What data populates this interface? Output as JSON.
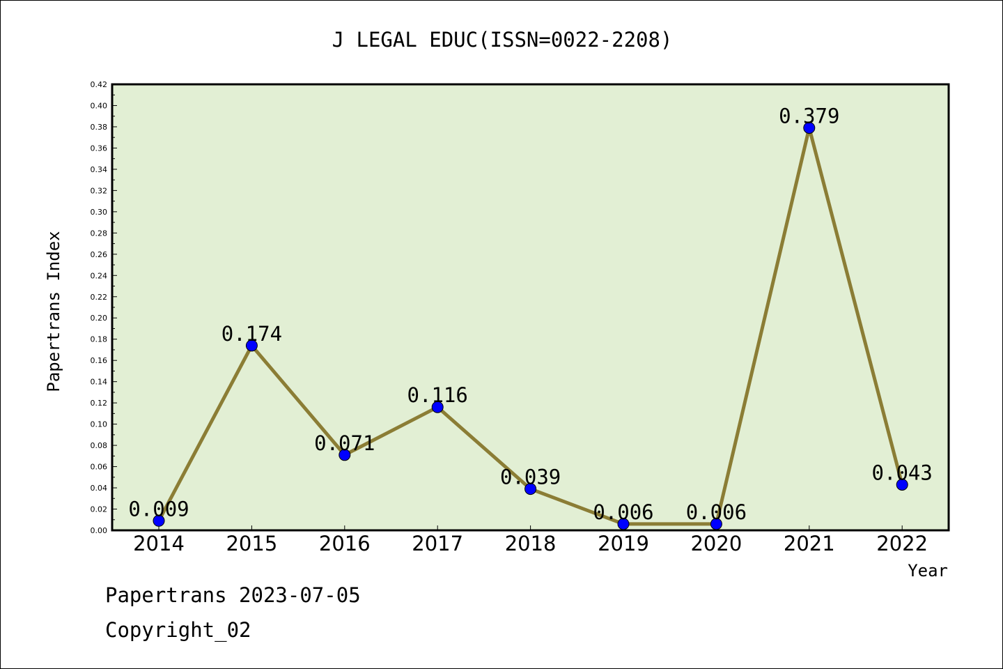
{
  "chart_data": {
    "type": "line",
    "title": "J LEGAL EDUC(ISSN=0022-2208)",
    "xlabel": "Year",
    "ylabel": "Papertrans Index",
    "categories": [
      "2014",
      "2015",
      "2016",
      "2017",
      "2018",
      "2019",
      "2020",
      "2021",
      "2022"
    ],
    "values": [
      0.009,
      0.174,
      0.071,
      0.116,
      0.039,
      0.006,
      0.006,
      0.379,
      0.043
    ],
    "data_labels": [
      "0.009",
      "0.174",
      "0.071",
      "0.116",
      "0.039",
      "0.006",
      "0.006",
      "0.379",
      "0.043"
    ],
    "ylim": [
      0,
      0.42
    ],
    "yticks": [
      "0.00",
      "0.02",
      "0.04",
      "0.06",
      "0.08",
      "0.10",
      "0.12",
      "0.14",
      "0.16",
      "0.18",
      "0.20",
      "0.22",
      "0.24",
      "0.26",
      "0.28",
      "0.30",
      "0.32",
      "0.34",
      "0.36",
      "0.38",
      "0.40",
      "0.42"
    ],
    "grid": false,
    "legend": "none",
    "colors": {
      "plot_background": "#e2efd4",
      "line": "#8b7d35",
      "marker": "#0000ff"
    }
  },
  "footer": {
    "line1": "Papertrans 2023-07-05",
    "line2": "Copyright_02"
  }
}
